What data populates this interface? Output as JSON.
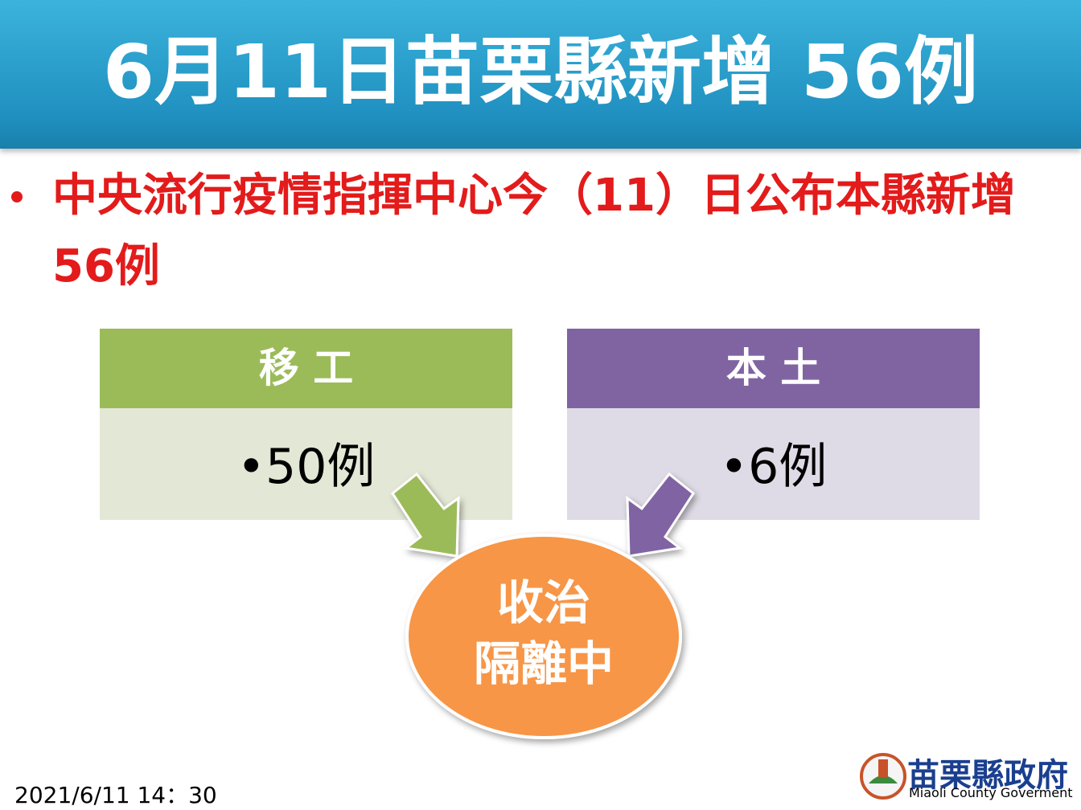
{
  "header": {
    "title": "6月11日苗栗縣新增 56例"
  },
  "bullet": "中央流行疫情指揮中心今（11）日公布本縣新增 56例",
  "boxes": [
    {
      "heading": "移 工",
      "item": "•50例"
    },
    {
      "heading": "本 土",
      "item": "•6例"
    }
  ],
  "circle": {
    "lines": [
      "收治",
      "隔離中"
    ]
  },
  "footer": {
    "timestamp": "2021/6/11 14：30"
  },
  "logo": {
    "name": "苗栗縣政府",
    "english": "Miaoli County Goverment"
  }
}
